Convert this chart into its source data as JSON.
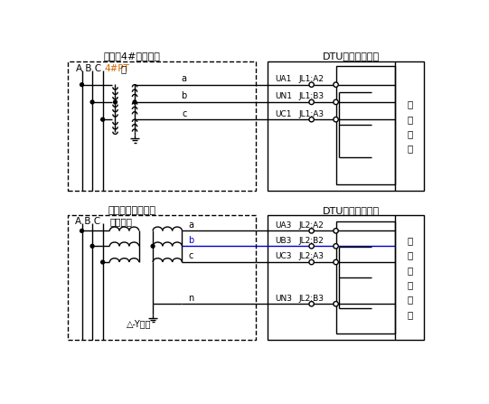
{
  "bg_color": "#ffffff",
  "top_left_title": "开关柜4#母线电压",
  "top_right_title": "DTU遥测电压回路",
  "bot_left_title": "变压器柜遥测回路",
  "bot_right_title": "DTU配变遥测回路",
  "top_left_sub1": "A B C",
  "top_left_sub2": "4#PT",
  "top_left_sub3": "柜",
  "bot_left_sub1": "A B C",
  "bot_left_sub2": "变压器柜",
  "top_right_labels": [
    "UA1",
    "JL1:A2",
    "UN1",
    "JL1:B3",
    "UC1",
    "JL1:A3"
  ],
  "bot_right_labels": [
    "UA3",
    "JL2:A2",
    "UB3",
    "JL2:B2",
    "UC3",
    "JL2:A3",
    "UN3",
    "JL2:B3"
  ],
  "top_right_side": "采\n样\n电\n压",
  "bot_right_side": "配\n变\n采\n样\n电\n压",
  "wire_a": "a",
  "wire_b": "b",
  "wire_c": "c",
  "wire_n": "n",
  "delta_y": "△-Y联结",
  "orange": "#cc6600",
  "blue": "#0000cc"
}
